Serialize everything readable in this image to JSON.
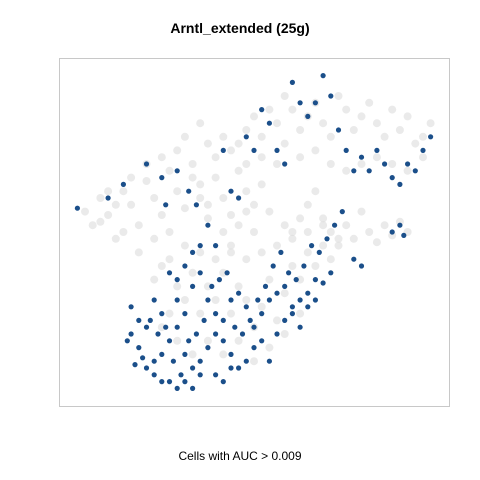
{
  "chart_data": {
    "type": "scatter",
    "title": "Arntl_extended (25g)",
    "caption": "Cells with AUC > 0.009",
    "xlabel": "",
    "ylabel": "",
    "axes_visible": false,
    "grid": false,
    "legend": "none",
    "xlim": [
      0,
      100
    ],
    "ylim": [
      0,
      100
    ],
    "colors": {
      "background_cells": "#d8d8d8",
      "highlighted_cells": "#1b4f8a",
      "frame": "#c8c8c8"
    },
    "series": [
      {
        "role": "background",
        "points": [
          [
            6,
            56
          ],
          [
            8,
            52
          ],
          [
            10,
            60
          ],
          [
            12,
            55
          ],
          [
            14,
            48
          ],
          [
            16,
            62
          ],
          [
            18,
            58
          ],
          [
            20,
            52
          ],
          [
            22,
            65
          ],
          [
            24,
            60
          ],
          [
            26,
            55
          ],
          [
            28,
            68
          ],
          [
            30,
            62
          ],
          [
            32,
            57
          ],
          [
            34,
            70
          ],
          [
            36,
            64
          ],
          [
            38,
            58
          ],
          [
            40,
            66
          ],
          [
            42,
            60
          ],
          [
            44,
            55
          ],
          [
            46,
            68
          ],
          [
            48,
            62
          ],
          [
            50,
            58
          ],
          [
            52,
            64
          ],
          [
            54,
            56
          ],
          [
            58,
            52
          ],
          [
            60,
            48
          ],
          [
            62,
            54
          ],
          [
            64,
            58
          ],
          [
            66,
            62
          ],
          [
            68,
            54
          ],
          [
            70,
            50
          ],
          [
            72,
            46
          ],
          [
            74,
            52
          ],
          [
            76,
            48
          ],
          [
            78,
            56
          ],
          [
            80,
            50
          ],
          [
            82,
            47
          ],
          [
            84,
            52
          ],
          [
            86,
            49
          ],
          [
            88,
            53
          ],
          [
            90,
            50
          ],
          [
            12,
            62
          ],
          [
            14,
            58
          ],
          [
            18,
            66
          ],
          [
            22,
            70
          ],
          [
            26,
            72
          ],
          [
            30,
            74
          ],
          [
            32,
            78
          ],
          [
            34,
            66
          ],
          [
            36,
            60
          ],
          [
            38,
            54
          ],
          [
            42,
            50
          ],
          [
            44,
            46
          ],
          [
            46,
            52
          ],
          [
            48,
            56
          ],
          [
            50,
            50
          ],
          [
            24,
            48
          ],
          [
            28,
            50
          ],
          [
            20,
            44
          ],
          [
            16,
            50
          ],
          [
            10,
            53
          ],
          [
            40,
            72
          ],
          [
            44,
            74
          ],
          [
            48,
            80
          ],
          [
            50,
            84
          ],
          [
            52,
            78
          ],
          [
            54,
            86
          ],
          [
            56,
            82
          ],
          [
            58,
            90
          ],
          [
            60,
            86
          ],
          [
            62,
            80
          ],
          [
            64,
            84
          ],
          [
            66,
            88
          ],
          [
            68,
            82
          ],
          [
            70,
            78
          ],
          [
            72,
            90
          ],
          [
            74,
            86
          ],
          [
            76,
            80
          ],
          [
            78,
            84
          ],
          [
            80,
            88
          ],
          [
            82,
            82
          ],
          [
            84,
            78
          ],
          [
            86,
            86
          ],
          [
            88,
            80
          ],
          [
            90,
            84
          ],
          [
            92,
            76
          ],
          [
            94,
            78
          ],
          [
            96,
            82
          ],
          [
            58,
            76
          ],
          [
            62,
            72
          ],
          [
            66,
            74
          ],
          [
            70,
            70
          ],
          [
            74,
            68
          ],
          [
            78,
            70
          ],
          [
            82,
            72
          ],
          [
            86,
            70
          ],
          [
            90,
            68
          ],
          [
            94,
            72
          ],
          [
            56,
            70
          ],
          [
            52,
            72
          ],
          [
            48,
            70
          ],
          [
            46,
            76
          ],
          [
            42,
            78
          ],
          [
            38,
            76
          ],
          [
            36,
            82
          ],
          [
            30,
            34
          ],
          [
            32,
            30
          ],
          [
            34,
            38
          ],
          [
            36,
            26
          ],
          [
            38,
            34
          ],
          [
            40,
            30
          ],
          [
            42,
            38
          ],
          [
            44,
            26
          ],
          [
            46,
            34
          ],
          [
            48,
            30
          ],
          [
            50,
            22
          ],
          [
            52,
            28
          ],
          [
            54,
            36
          ],
          [
            56,
            24
          ],
          [
            58,
            32
          ],
          [
            60,
            40
          ],
          [
            62,
            36
          ],
          [
            64,
            44
          ],
          [
            66,
            40
          ],
          [
            68,
            46
          ],
          [
            70,
            42
          ],
          [
            72,
            48
          ],
          [
            28,
            26
          ],
          [
            26,
            22
          ],
          [
            30,
            18
          ],
          [
            34,
            14
          ],
          [
            38,
            18
          ],
          [
            42,
            14
          ],
          [
            46,
            18
          ],
          [
            50,
            12
          ],
          [
            54,
            16
          ],
          [
            58,
            20
          ],
          [
            62,
            26
          ],
          [
            26,
            40
          ],
          [
            24,
            36
          ],
          [
            28,
            42
          ],
          [
            32,
            46
          ],
          [
            36,
            44
          ],
          [
            40,
            42
          ],
          [
            44,
            44
          ],
          [
            48,
            42
          ],
          [
            52,
            44
          ],
          [
            56,
            46
          ],
          [
            60,
            50
          ],
          [
            64,
            50
          ],
          [
            68,
            52
          ]
        ]
      },
      {
        "role": "highlighted",
        "points": [
          [
            4,
            57
          ],
          [
            12,
            60
          ],
          [
            16,
            64
          ],
          [
            22,
            70
          ],
          [
            26,
            66
          ],
          [
            27,
            58
          ],
          [
            30,
            68
          ],
          [
            33,
            62
          ],
          [
            35,
            58
          ],
          [
            38,
            52
          ],
          [
            40,
            46
          ],
          [
            42,
            74
          ],
          [
            44,
            62
          ],
          [
            46,
            60
          ],
          [
            48,
            78
          ],
          [
            50,
            74
          ],
          [
            52,
            86
          ],
          [
            54,
            82
          ],
          [
            56,
            74
          ],
          [
            58,
            70
          ],
          [
            60,
            94
          ],
          [
            62,
            88
          ],
          [
            64,
            84
          ],
          [
            66,
            88
          ],
          [
            68,
            96
          ],
          [
            70,
            90
          ],
          [
            72,
            80
          ],
          [
            74,
            74
          ],
          [
            76,
            68
          ],
          [
            78,
            72
          ],
          [
            80,
            68
          ],
          [
            82,
            74
          ],
          [
            84,
            70
          ],
          [
            86,
            66
          ],
          [
            88,
            64
          ],
          [
            90,
            70
          ],
          [
            92,
            68
          ],
          [
            94,
            74
          ],
          [
            96,
            78
          ],
          [
            88,
            52
          ],
          [
            86,
            50
          ],
          [
            89,
            49
          ],
          [
            78,
            40
          ],
          [
            76,
            42
          ],
          [
            70,
            38
          ],
          [
            68,
            35
          ],
          [
            66,
            36
          ],
          [
            64,
            32
          ],
          [
            62,
            30
          ],
          [
            60,
            28
          ],
          [
            58,
            34
          ],
          [
            56,
            32
          ],
          [
            54,
            30
          ],
          [
            52,
            26
          ],
          [
            50,
            22
          ],
          [
            48,
            28
          ],
          [
            46,
            32
          ],
          [
            44,
            30
          ],
          [
            42,
            24
          ],
          [
            40,
            20
          ],
          [
            38,
            16
          ],
          [
            36,
            12
          ],
          [
            34,
            10
          ],
          [
            32,
            14
          ],
          [
            30,
            22
          ],
          [
            28,
            18
          ],
          [
            26,
            14
          ],
          [
            24,
            12
          ],
          [
            22,
            10
          ],
          [
            20,
            16
          ],
          [
            18,
            20
          ],
          [
            24,
            30
          ],
          [
            26,
            26
          ],
          [
            30,
            30
          ],
          [
            32,
            26
          ],
          [
            34,
            34
          ],
          [
            36,
            38
          ],
          [
            38,
            30
          ],
          [
            40,
            26
          ],
          [
            42,
            18
          ],
          [
            44,
            14
          ],
          [
            46,
            10
          ],
          [
            48,
            12
          ],
          [
            50,
            16
          ],
          [
            52,
            18
          ],
          [
            54,
            12
          ],
          [
            56,
            20
          ],
          [
            58,
            24
          ],
          [
            60,
            26
          ],
          [
            62,
            22
          ],
          [
            64,
            28
          ],
          [
            66,
            30
          ],
          [
            23,
            24
          ],
          [
            25,
            20
          ],
          [
            27,
            22
          ],
          [
            29,
            12
          ],
          [
            31,
            8
          ],
          [
            33,
            18
          ],
          [
            35,
            20
          ],
          [
            37,
            24
          ],
          [
            39,
            34
          ],
          [
            41,
            36
          ],
          [
            43,
            38
          ],
          [
            45,
            22
          ],
          [
            47,
            20
          ],
          [
            49,
            24
          ],
          [
            51,
            30
          ],
          [
            53,
            34
          ],
          [
            55,
            40
          ],
          [
            57,
            44
          ],
          [
            59,
            38
          ],
          [
            61,
            36
          ],
          [
            63,
            40
          ],
          [
            65,
            46
          ],
          [
            67,
            44
          ],
          [
            69,
            48
          ],
          [
            71,
            52
          ],
          [
            73,
            56
          ],
          [
            18,
            28
          ],
          [
            20,
            24
          ],
          [
            22,
            22
          ],
          [
            28,
            38
          ],
          [
            30,
            36
          ],
          [
            32,
            40
          ],
          [
            34,
            44
          ],
          [
            36,
            46
          ],
          [
            24,
            8
          ],
          [
            26,
            6
          ],
          [
            28,
            6
          ],
          [
            30,
            4
          ],
          [
            32,
            6
          ],
          [
            34,
            4
          ],
          [
            36,
            8
          ],
          [
            40,
            8
          ],
          [
            42,
            6
          ],
          [
            44,
            10
          ],
          [
            21,
            13
          ],
          [
            19,
            11
          ],
          [
            17,
            18
          ]
        ]
      }
    ]
  }
}
